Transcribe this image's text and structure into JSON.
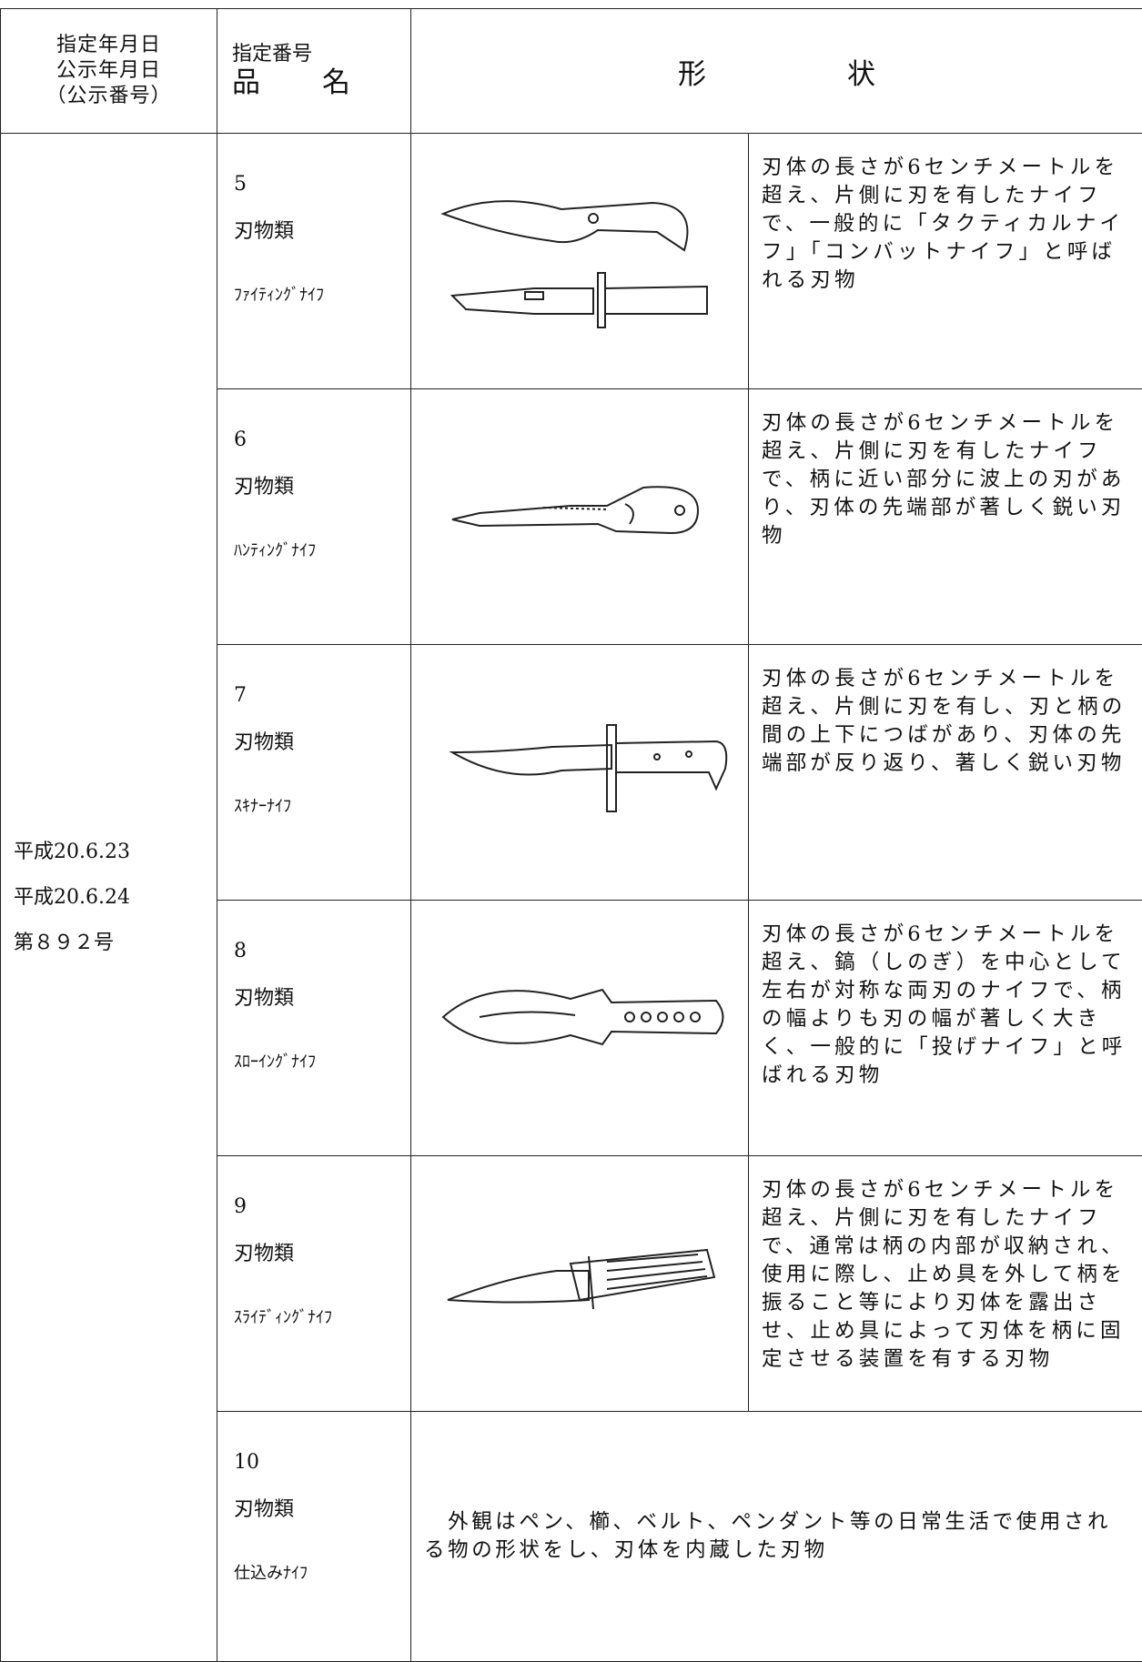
{
  "header": {
    "date_labels": [
      "指定年月日",
      "公示年月日",
      "（公示番号）"
    ],
    "number_label": "指定番号",
    "name_label": "品　　名",
    "shape_label": "形　　　　　状"
  },
  "dates": [
    "平成20.6.23",
    "平成20.6.24",
    "第８９２号"
  ],
  "rows": [
    {
      "number": "5",
      "category": "刃物類",
      "name": "ﾌｧｲﾃｨﾝｸﾞﾅｲﾌ",
      "description": "刃体の長さが6センチメートルを超え、片側に刃を有したナイフで、一般的に「タクティカルナイフ」「コンバットナイフ」と呼ばれる刃物"
    },
    {
      "number": "6",
      "category": "刃物類",
      "name": "ﾊﾝﾃｨﾝｸﾞﾅｲﾌ",
      "description": "刃体の長さが6センチメートルを超え、片側に刃を有したナイフで、柄に近い部分に波上の刃があり、刃体の先端部が著しく鋭い刃物"
    },
    {
      "number": "7",
      "category": "刃物類",
      "name": "ｽｷﾅｰﾅｲﾌ",
      "description": "刃体の長さが6センチメートルを超え、片側に刃を有し、刃と柄の間の上下につばがあり、刃体の先端部が反り返り、著しく鋭い刃物"
    },
    {
      "number": "8",
      "category": "刃物類",
      "name": "ｽﾛｰｲﾝｸﾞﾅｲﾌ",
      "description": "刃体の長さが6センチメートルを超え、鎬（しのぎ）を中心として左右が対称な両刃のナイフで、柄の幅よりも刃の幅が著しく大きく、一般的に「投げナイフ」と呼ばれる刃物"
    },
    {
      "number": "9",
      "category": "刃物類",
      "name": "ｽﾗｲﾃﾞｨﾝｸﾞﾅｲﾌ",
      "description": "刃体の長さが6センチメートルを超え、片側に刃を有したナイフで、通常は柄の内部が収納され、使用に際し、止め具を外して柄を振ること等により刃体を露出させ、止め具によって刃体を柄に固定させる装置を有する刃物"
    },
    {
      "number": "10",
      "category": "刃物類",
      "name": "仕込みﾅｲﾌ",
      "description": "　外観はペン、櫛、ベルト、ペンダント等の日常生活で使用される物の形状をし、刃体を内蔵した刃物"
    }
  ]
}
